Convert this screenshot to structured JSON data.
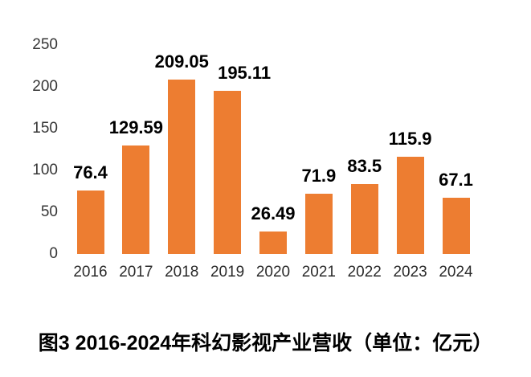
{
  "caption": "图3 2016-2024年科幻影视产业营收（单位：亿元）",
  "colors": {
    "bar": "#ED7D31",
    "axis_text": "#363636",
    "value_text": "#000000",
    "caption_text": "#000000",
    "background": "#FFFFFF"
  },
  "chart_data": {
    "type": "bar",
    "title": "图3 2016-2024年科幻影视产业营收（单位：亿元）",
    "unit_label": "亿元",
    "categories": [
      "2016",
      "2017",
      "2018",
      "2019",
      "2020",
      "2021",
      "2022",
      "2023",
      "2024"
    ],
    "values": [
      76.4,
      129.59,
      209.05,
      195.11,
      26.49,
      71.9,
      83.5,
      115.9,
      67.1
    ],
    "data_labels": [
      "76.4",
      "129.59",
      "209.05",
      "195.11",
      "26.49",
      "71.9",
      "83.5",
      "115.9",
      "67.1"
    ],
    "label_dx": [
      0,
      0,
      0,
      21,
      0,
      0,
      0,
      0,
      0
    ],
    "xlabel": "",
    "ylabel": "",
    "ylim": [
      0,
      250
    ],
    "yticks": [
      0,
      50,
      100,
      150,
      200,
      250
    ],
    "grid": false,
    "legend": "none",
    "bar_color": "#ED7D31",
    "axis_lines": false
  }
}
